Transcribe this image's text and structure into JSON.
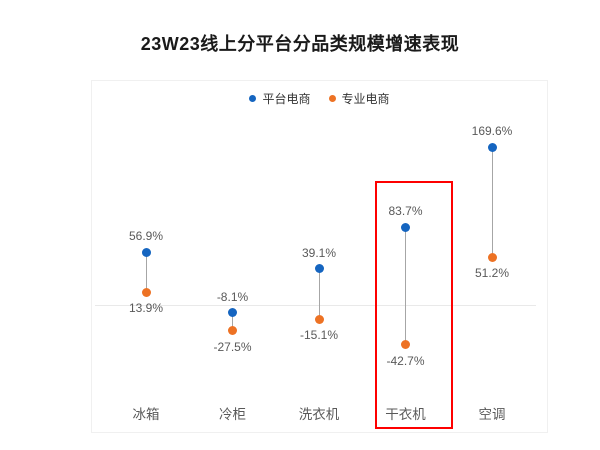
{
  "title": "23W23线上分平台分品类规模增速表现",
  "legend": {
    "items": [
      {
        "label": "平台电商",
        "color": "#1565c0"
      },
      {
        "label": "专业电商",
        "color": "#ed7224"
      }
    ]
  },
  "colors": {
    "platform_series": "#1565c0",
    "specialist_series": "#ed7224",
    "connector_line": "#a6a6a6",
    "zero_gridline": "#e9e9e9",
    "chart_border": "#f0f0f0",
    "highlight_box": "#fe0000",
    "data_label": "#595959",
    "category_label": "#595959"
  },
  "chart_data": {
    "type": "scatter",
    "subtype": "dumbbell-dot-plot",
    "title": "23W23线上分平台分品类规模增速表现",
    "categories": [
      "冰箱",
      "冷柜",
      "洗衣机",
      "干衣机",
      "空调"
    ],
    "series": [
      {
        "name": "平台电商",
        "color": "#1565c0",
        "values": [
          56.9,
          -8.1,
          39.1,
          83.7,
          169.6
        ],
        "labels": [
          "56.9%",
          "-8.1%",
          "39.1%",
          "83.7%",
          "169.6%"
        ]
      },
      {
        "name": "专业电商",
        "color": "#ed7224",
        "values": [
          13.9,
          -27.5,
          -15.1,
          -42.7,
          51.2
        ],
        "labels": [
          "13.9%",
          "-27.5%",
          "-15.1%",
          "-42.7%",
          "51.2%"
        ]
      }
    ],
    "unit": "%",
    "value_axis_visible": false,
    "category_axis_visible": false,
    "zero_gridline": true,
    "legend_position": "top-center",
    "highlighted_category": "干衣机",
    "approx_ylim": [
      -110,
      230
    ]
  }
}
